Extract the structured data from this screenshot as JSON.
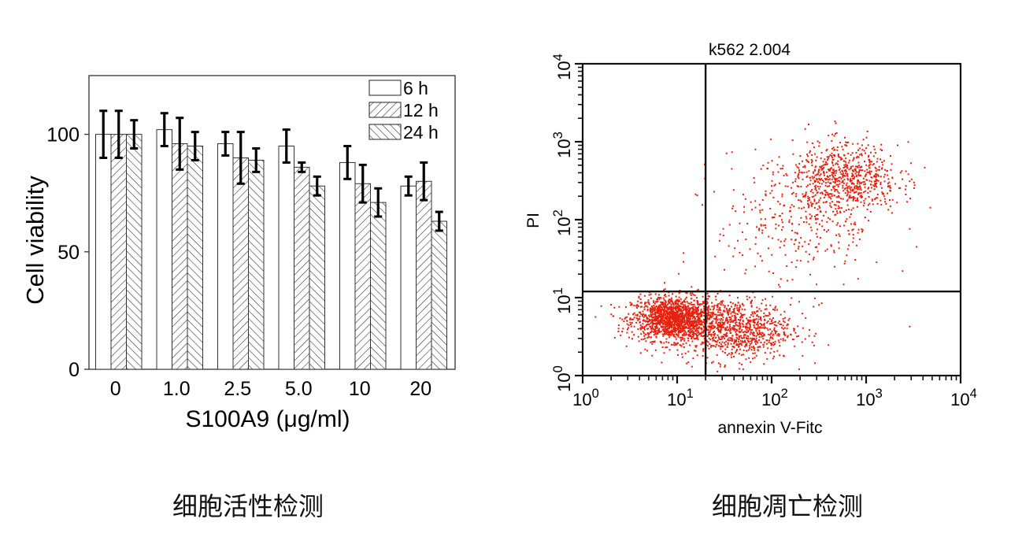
{
  "captions": {
    "left": "细胞活性检测",
    "right": "细胞凋亡检测"
  },
  "chart_data": [
    {
      "type": "bar",
      "ylabel": "Cell viability",
      "xlabel": "S100A9 (μg/ml)",
      "categories": [
        "0",
        "1.0",
        "2.5",
        "5.0",
        "10",
        "20"
      ],
      "ylim": [
        0,
        125
      ],
      "yticks": [
        0,
        50,
        100
      ],
      "legend_position": "top-right",
      "series": [
        {
          "name": "6 h",
          "pattern": "open",
          "values": [
            100,
            102,
            96,
            95,
            88,
            78
          ],
          "errors": [
            10,
            7,
            5,
            7,
            7,
            4
          ]
        },
        {
          "name": "12 h",
          "pattern": "forward-hatch",
          "values": [
            100,
            96,
            90,
            86,
            79,
            80
          ],
          "errors": [
            10,
            11,
            11,
            2,
            8,
            8
          ]
        },
        {
          "name": "24 h",
          "pattern": "back-hatch",
          "values": [
            100,
            95,
            89,
            78,
            71,
            63
          ],
          "errors": [
            6,
            6,
            5,
            4,
            6,
            4
          ]
        }
      ]
    },
    {
      "type": "scatter",
      "title": "k562 2.004",
      "xlabel": "annexin V-Fitc",
      "ylabel": "PI",
      "x_scale": "log",
      "y_scale": "log",
      "xlim": [
        1,
        10000
      ],
      "ylim": [
        1,
        10000
      ],
      "x_tick_labels": [
        "10^0",
        "10^1",
        "10^2",
        "10^3",
        "10^4"
      ],
      "y_tick_labels": [
        "10^0",
        "10^1",
        "10^2",
        "10^3",
        "10^4"
      ],
      "gates": {
        "x": 20,
        "y": 12
      },
      "point_color": "#e8200f",
      "populations": [
        {
          "center": [
            9,
            5.5
          ],
          "count": 1500,
          "spread": [
            0.22,
            0.14
          ]
        },
        {
          "center": [
            40,
            4
          ],
          "count": 900,
          "spread": [
            0.3,
            0.2
          ]
        },
        {
          "center": [
            600,
            350
          ],
          "count": 700,
          "spread": [
            0.28,
            0.22
          ]
        },
        {
          "center": [
            200,
            100
          ],
          "count": 350,
          "spread": [
            0.45,
            0.45
          ]
        }
      ]
    }
  ]
}
